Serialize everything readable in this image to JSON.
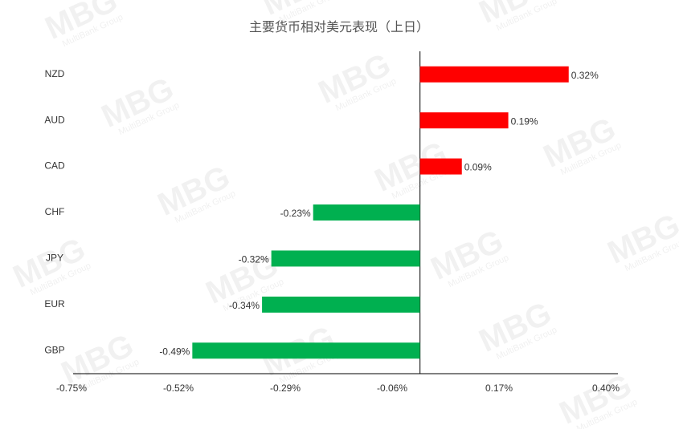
{
  "chart_data": {
    "type": "hbar",
    "title": "主要货币相对美元表现（上日）",
    "watermark": "MBG",
    "watermark_subtitle": "MultiBank Group",
    "categories": [
      "NZD",
      "AUD",
      "CAD",
      "CHF",
      "JPY",
      "EUR",
      "GBP"
    ],
    "values": [
      0.32,
      0.19,
      0.09,
      -0.23,
      -0.32,
      -0.34,
      -0.49
    ],
    "value_labels": [
      "0.32%",
      "0.19%",
      "0.09%",
      "-0.23%",
      "-0.32%",
      "-0.34%",
      "-0.49%"
    ],
    "positive_color": "#ff0000",
    "negative_color": "#00b050",
    "xlim": [
      -0.75,
      0.4
    ],
    "xticks": [
      {
        "value": -0.75,
        "label": "-0.75%"
      },
      {
        "value": -0.52,
        "label": "-0.52%"
      },
      {
        "value": -0.29,
        "label": "-0.29%"
      },
      {
        "value": -0.06,
        "label": "-0.06%"
      },
      {
        "value": 0.17,
        "label": "0.17%"
      },
      {
        "value": 0.4,
        "label": "0.40%"
      }
    ],
    "grid": false
  }
}
